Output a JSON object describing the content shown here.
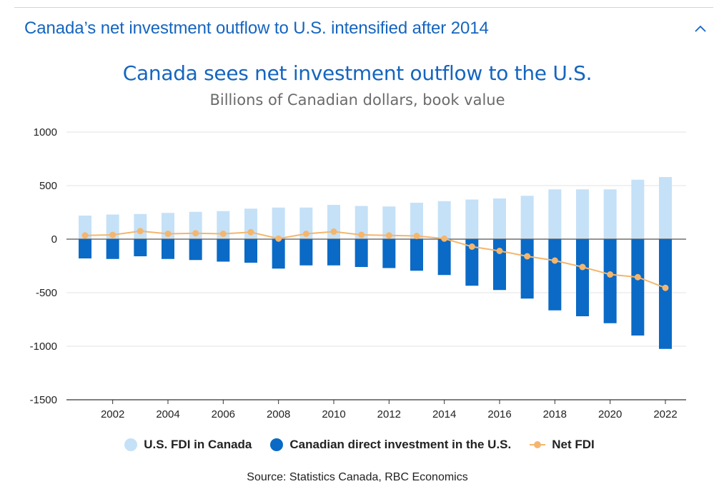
{
  "accordion": {
    "title": "Canada’s net investment outflow to U.S. intensified after 2014",
    "toggle_icon": "chevron-up-icon"
  },
  "colors": {
    "accent": "#1565c0",
    "us_fdi": "#c5e1f7",
    "cdi": "#0a6ac6",
    "net": "#f4b66e"
  },
  "chart_data": {
    "type": "bar",
    "title": "Canada sees net investment outflow to the U.S.",
    "subtitle": "Billions of Canadian dollars, book value",
    "x": [
      2001,
      2002,
      2003,
      2004,
      2005,
      2006,
      2007,
      2008,
      2009,
      2010,
      2011,
      2012,
      2013,
      2014,
      2015,
      2016,
      2017,
      2018,
      2019,
      2020,
      2021,
      2022
    ],
    "xticks": [
      2002,
      2004,
      2006,
      2008,
      2010,
      2012,
      2014,
      2016,
      2018,
      2020,
      2022
    ],
    "ylim": [
      -1500,
      1000
    ],
    "yticks": [
      1000,
      500,
      0,
      -500,
      -1000,
      -1500
    ],
    "series": [
      {
        "name": "U.S. FDI in Canada",
        "kind": "bar",
        "values": [
          220,
          230,
          235,
          245,
          255,
          262,
          285,
          295,
          295,
          320,
          310,
          305,
          340,
          355,
          370,
          380,
          405,
          465,
          465,
          465,
          555,
          580
        ]
      },
      {
        "name": "Canadian direct investment in the U.S.",
        "kind": "bar",
        "values": [
          -180,
          -185,
          -160,
          -185,
          -195,
          -210,
          -220,
          -275,
          -245,
          -245,
          -260,
          -270,
          -295,
          -335,
          -435,
          -475,
          -555,
          -665,
          -720,
          -785,
          -900,
          -1025
        ]
      },
      {
        "name": "Net FDI",
        "kind": "line",
        "values": [
          35,
          40,
          75,
          50,
          55,
          50,
          65,
          5,
          50,
          70,
          40,
          35,
          30,
          5,
          -70,
          -110,
          -160,
          -200,
          -260,
          -330,
          -355,
          -455
        ]
      }
    ],
    "source": "Source: Statistics Canada, RBC Economics"
  }
}
